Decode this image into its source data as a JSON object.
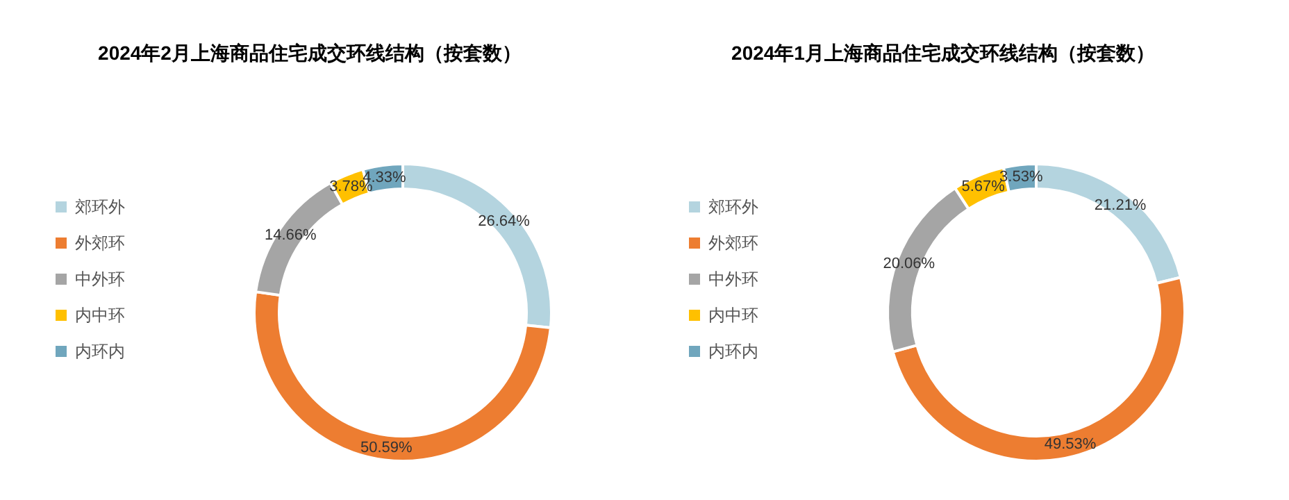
{
  "chart_data": [
    {
      "type": "donut",
      "title": "2024年2月上海商品住宅成交环线结构（按套数）",
      "categories": [
        "郊环外",
        "外郊环",
        "中外环",
        "内中环",
        "内环内"
      ],
      "values": [
        26.64,
        50.59,
        14.66,
        3.78,
        4.33
      ],
      "colors": [
        "#b4d4df",
        "#ed7d31",
        "#a5a5a5",
        "#ffc000",
        "#70a6bd"
      ],
      "value_labels": [
        "26.64%",
        "50.59%",
        "14.66%",
        "3.78%",
        "4.33%"
      ],
      "legend": "left"
    },
    {
      "type": "donut",
      "title": "2024年1月上海商品住宅成交环线结构（按套数）",
      "categories": [
        "郊环外",
        "外郊环",
        "中外环",
        "内中环",
        "内环内"
      ],
      "values": [
        21.21,
        49.53,
        20.06,
        5.67,
        3.53
      ],
      "colors": [
        "#b4d4df",
        "#ed7d31",
        "#a5a5a5",
        "#ffc000",
        "#70a6bd"
      ],
      "value_labels": [
        "21.21%",
        "49.53%",
        "20.06%",
        "5.67%",
        "3.53%"
      ],
      "legend": "left"
    }
  ]
}
